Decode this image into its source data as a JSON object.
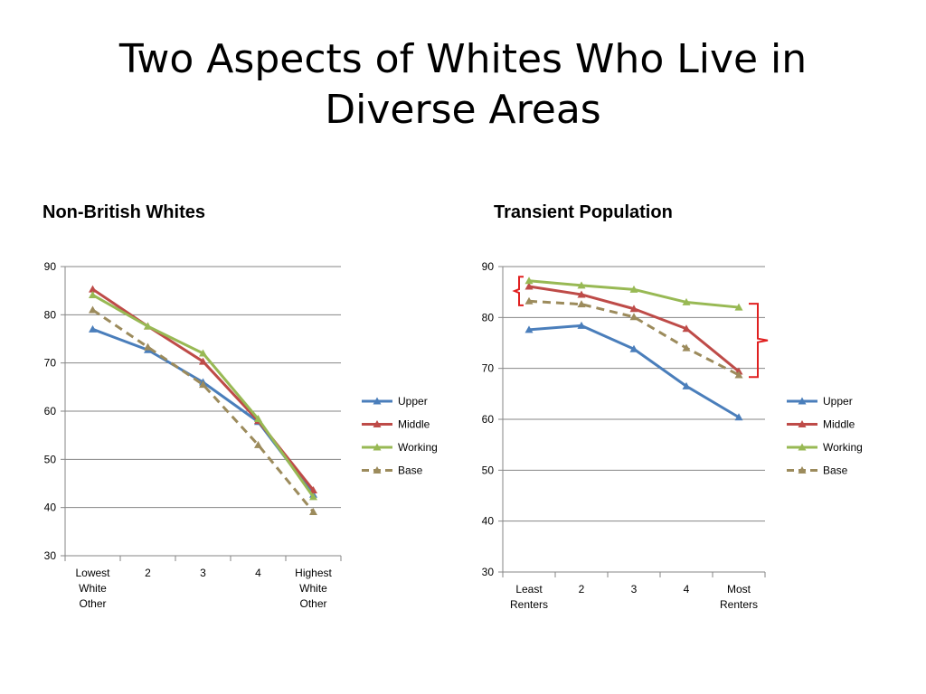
{
  "slide": {
    "title_line1": "Two Aspects of Whites Who Live in",
    "title_line2": "Diverse Areas"
  },
  "colors": {
    "Upper": "#4a7ebb",
    "Middle": "#be4b48",
    "Working": "#98b954",
    "Base": "#9c8b5c",
    "bracket": "#e02020"
  },
  "chart_data": [
    {
      "type": "line",
      "title": "Non-British Whites",
      "categories": [
        [
          "Lowest",
          "White",
          "Other"
        ],
        [
          "2"
        ],
        [
          "3"
        ],
        [
          "4"
        ],
        [
          "Highest",
          "White",
          "Other"
        ]
      ],
      "ylim": [
        30,
        90
      ],
      "yticks": [
        30,
        40,
        50,
        60,
        70,
        80,
        90
      ],
      "grid": true,
      "legend_position": "right",
      "series": [
        {
          "name": "Upper",
          "values": [
            77,
            72.7,
            66,
            57.8,
            42.7
          ],
          "dashed": false
        },
        {
          "name": "Middle",
          "values": [
            85.3,
            77.6,
            70.3,
            58,
            43.6
          ],
          "dashed": false
        },
        {
          "name": "Working",
          "values": [
            84.1,
            77.6,
            72,
            58.4,
            42.2
          ],
          "dashed": false
        },
        {
          "name": "Base",
          "values": [
            81,
            73.3,
            65.5,
            53,
            39.1
          ],
          "dashed": true
        }
      ]
    },
    {
      "type": "line",
      "title": "Transient Population",
      "categories": [
        [
          "Least",
          "Renters"
        ],
        [
          "2"
        ],
        [
          "3"
        ],
        [
          "4"
        ],
        [
          "Most",
          "Renters"
        ]
      ],
      "ylim": [
        30,
        90
      ],
      "yticks": [
        30,
        40,
        50,
        60,
        70,
        80,
        90
      ],
      "grid": true,
      "legend_position": "right",
      "series": [
        {
          "name": "Upper",
          "values": [
            77.6,
            78.4,
            73.8,
            66.5,
            60.4
          ],
          "dashed": false
        },
        {
          "name": "Middle",
          "values": [
            86.1,
            84.5,
            81.7,
            77.8,
            69.4
          ],
          "dashed": false
        },
        {
          "name": "Working",
          "values": [
            87.2,
            86.3,
            85.5,
            83,
            82
          ],
          "dashed": false
        },
        {
          "name": "Base",
          "values": [
            83.2,
            82.6,
            80.1,
            74,
            68.7
          ],
          "dashed": true
        }
      ],
      "brackets": [
        {
          "y_range": [
            82.4,
            88
          ],
          "side": "left",
          "x_index": 0
        },
        {
          "y_range": [
            68.3,
            82.7
          ],
          "side": "right",
          "x_index": 4
        }
      ]
    }
  ]
}
